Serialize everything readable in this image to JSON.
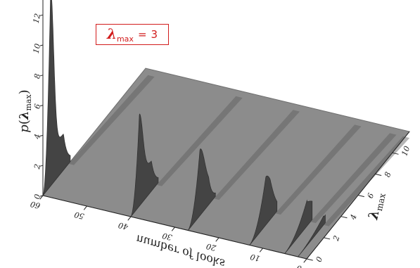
{
  "chart_data": {
    "type": "surface",
    "title": "",
    "zlabel": {
      "symbol": "p",
      "arg_symbol": "λ",
      "arg_sub": "max"
    },
    "xlabel": "number of looks",
    "ylabel": {
      "symbol": "λ",
      "sub": "max"
    },
    "x_ticks": [
      0,
      10,
      20,
      30,
      40,
      50,
      60
    ],
    "y_ticks": [
      0,
      2,
      4,
      6,
      8,
      10
    ],
    "z_ticks": [
      0,
      2,
      4,
      6,
      8,
      10,
      12
    ],
    "xlim": [
      0,
      60
    ],
    "ylim": [
      0,
      12
    ],
    "zlim": [
      0,
      13
    ],
    "annotation": {
      "symbol": "λ",
      "sub": "max",
      "eq": "=",
      "value": "3"
    },
    "slices": [
      {
        "looks": 60,
        "peak_lambda": 0.9,
        "peak_p": 13.0,
        "plateau_p": 2.4
      },
      {
        "looks": 40,
        "peak_lambda": 1.0,
        "peak_p": 6.1,
        "plateau_p": 2.0
      },
      {
        "looks": 27,
        "peak_lambda": 1.4,
        "peak_p": 4.4,
        "plateau_p": 1.3
      },
      {
        "looks": 13,
        "peak_lambda": 1.9,
        "peak_p": 3.2,
        "plateau_p": 0.7
      },
      {
        "looks": 5,
        "peak_lambda": 2.6,
        "peak_p": 1.7,
        "plateau_p": 0.3
      },
      {
        "looks": 2,
        "peak_lambda": 3.0,
        "peak_p": 0.6,
        "plateau_p": 0.1
      }
    ],
    "colors": {
      "plane": "#8c8c8c",
      "surface": "#444444",
      "axis": "#222222"
    }
  }
}
